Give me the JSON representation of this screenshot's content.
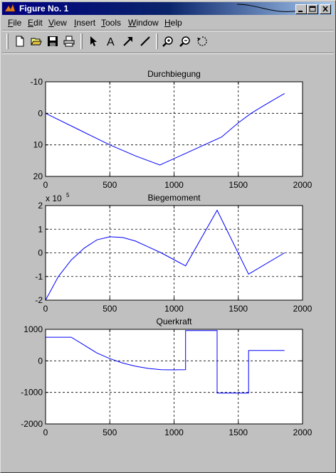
{
  "window": {
    "title": "Figure No. 1"
  },
  "titlebar_buttons": [
    {
      "name": "minimize-button",
      "icon": "minimize-icon"
    },
    {
      "name": "maximize-button",
      "icon": "maximize-icon"
    },
    {
      "name": "close-button",
      "icon": "close-icon"
    }
  ],
  "menu": [
    "File",
    "Edit",
    "View",
    "Insert",
    "Tools",
    "Window",
    "Help"
  ],
  "toolbar": [
    "new-file-icon",
    "open-folder-icon",
    "save-icon",
    "print-icon",
    "pointer-arrow-icon",
    "text-A-icon",
    "arrow-tool-icon",
    "line-tool-icon",
    "zoom-in-icon",
    "zoom-out-icon",
    "rotate-icon"
  ],
  "colors": {
    "plot_line": "#0000ff",
    "titlebar": "#000080",
    "background": "#c0c0c0"
  },
  "chart_data": [
    {
      "type": "line",
      "title": "Durchbiegung",
      "xlabel": "",
      "ylabel": "",
      "xlim": [
        0,
        2000
      ],
      "ylim": [
        -10,
        20
      ],
      "y_reversed": true,
      "xticks": [
        "0",
        "500",
        "1000",
        "1500",
        "2000"
      ],
      "yticks": [
        "-10",
        "0",
        "10",
        "20"
      ],
      "ytick_values": [
        -10,
        0,
        10,
        20
      ],
      "grid": true,
      "x": [
        0,
        250,
        500,
        700,
        890,
        1100,
        1370,
        1500,
        1600,
        1700,
        1860
      ],
      "y": [
        0,
        5,
        10,
        13.5,
        16.4,
        12.5,
        7.5,
        3,
        0,
        -2.5,
        -6.3
      ]
    },
    {
      "type": "line",
      "title": "Biegemoment",
      "exponent_label": "x 10",
      "exponent_power": "5",
      "xlabel": "",
      "ylabel": "",
      "xlim": [
        0,
        2000
      ],
      "ylim": [
        -2,
        2
      ],
      "xticks": [
        "0",
        "500",
        "1000",
        "1500",
        "2000"
      ],
      "yticks": [
        "-2",
        "-1",
        "0",
        "1",
        "2"
      ],
      "ytick_values": [
        -2,
        -1,
        0,
        1,
        2
      ],
      "grid": true,
      "x": [
        0,
        100,
        200,
        300,
        400,
        500,
        600,
        700,
        800,
        900,
        1090,
        1335,
        1580,
        1860
      ],
      "y": [
        -2.0,
        -1.0,
        -0.3,
        0.2,
        0.55,
        0.68,
        0.65,
        0.5,
        0.25,
        0.0,
        -0.55,
        1.8,
        -0.9,
        0.0
      ]
    },
    {
      "type": "line",
      "title": "Querkraft",
      "xlabel": "",
      "ylabel": "",
      "xlim": [
        0,
        2000
      ],
      "ylim": [
        -2000,
        1000
      ],
      "xticks": [
        "0",
        "500",
        "1000",
        "1500",
        "2000"
      ],
      "yticks": [
        "-2000",
        "-1000",
        "0",
        "1000"
      ],
      "ytick_values": [
        -2000,
        -1000,
        0,
        1000
      ],
      "grid": true,
      "x": [
        0,
        200,
        300,
        400,
        500,
        600,
        700,
        800,
        900,
        1000,
        1090,
        1090,
        1335,
        1335,
        1580,
        1580,
        1860
      ],
      "y": [
        750,
        750,
        500,
        250,
        70,
        -70,
        -170,
        -240,
        -280,
        -285,
        -280,
        960,
        960,
        -1020,
        -1020,
        330,
        330
      ]
    }
  ]
}
